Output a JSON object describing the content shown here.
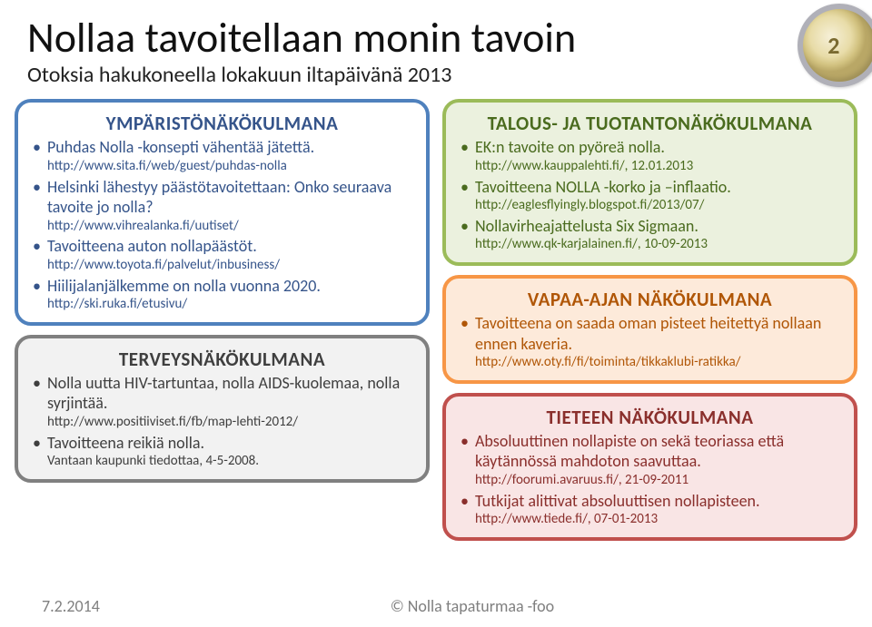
{
  "header": {
    "title": "Nollaa tavoitellaan monin tavoin",
    "subtitle": "Otoksia hakukoneella lokakuun iltapäivänä 2013"
  },
  "boxes": {
    "env": {
      "title": "YMPÄRISTÖNÄKÖKULMANA",
      "items": [
        {
          "text": "Puhdas Nolla -konsepti vähentää jätettä.",
          "sub": "http://www.sita.fi/web/guest/puhdas-nolla"
        },
        {
          "text": "Helsinki lähestyy päästötavoitettaan: Onko seuraava tavoite jo nolla?",
          "sub": "http://www.vihrealanka.fi/uutiset/"
        },
        {
          "text": "Tavoitteena auton nollapäästöt.",
          "sub": "http://www.toyota.fi/palvelut/inbusiness/"
        },
        {
          "text": "Hiilijalanjälkemme on nolla vuonna 2020.",
          "sub": "http://ski.ruka.fi/etusivu/"
        }
      ]
    },
    "health": {
      "title": "TERVEYSNÄKÖKULMANA",
      "items": [
        {
          "text": "Nolla uutta HIV-tartuntaa, nolla AIDS-kuolemaa, nolla syrjintää.",
          "sub": "http://www.positiiviset.fi/fb/map-lehti-2012/"
        },
        {
          "text": "Tavoitteena reikiä nolla.",
          "sub": "Vantaan kaupunki tiedottaa, 4-5-2008."
        }
      ]
    },
    "econ": {
      "title": "TALOUS- JA TUOTANTONÄKÖKULMANA",
      "items": [
        {
          "text": "EK:n tavoite on pyöreä nolla.",
          "sub": "http://www.kauppalehti.fi/, 12.01.2013"
        },
        {
          "text": "Tavoitteena NOLLA -korko ja –inflaatio.",
          "sub": "http://eaglesflyingly.blogspot.fi/2013/07/"
        },
        {
          "text": "Nollavirheajattelusta Six Sigmaan.",
          "sub": "http://www.qk-karjalainen.fi/, 10-09-2013"
        }
      ]
    },
    "leisure": {
      "title": "VAPAA-AJAN NÄKÖKULMANA",
      "items": [
        {
          "text": "Tavoitteena on saada oman pisteet heitettyä nollaan ennen kaveria.",
          "sub": "http://www.oty.fi/fi/toiminta/tikkaklubi-ratikka/"
        }
      ]
    },
    "science": {
      "title": "TIETEEN NÄKÖKULMANA",
      "items": [
        {
          "text": "Absoluuttinen nollapiste on sekä teoriassa että käytännössä mahdoton saavuttaa.",
          "sub": "http://foorumi.avaruus.fi/, 21-09-2011"
        },
        {
          "text": "Tutkijat alittivat absoluuttisen nollapisteen.",
          "sub": "http://www.tiede.fi/, 07-01-2013"
        }
      ]
    }
  },
  "footer": {
    "date": "7.2.2014",
    "copyright": "© Nolla tapaturmaa -foo"
  },
  "style": {
    "title_fontsize": 46,
    "subtitle_fontsize": 24,
    "body_fontsize": 18,
    "sub_fontsize": 15,
    "background": "#ffffff",
    "footer_color": "#7f7f7f",
    "boxes": {
      "env": {
        "border": "#4f81bd",
        "bg": "#ffffff",
        "text": "#35548a"
      },
      "health": {
        "border": "#808080",
        "bg": "#f2f2f2",
        "text": "#3f3f3f"
      },
      "econ": {
        "border": "#9bbb59",
        "bg": "#ebf1de",
        "text": "#4a6b1e"
      },
      "leisure": {
        "border": "#f79646",
        "bg": "#fdeada",
        "text": "#b05606"
      },
      "science": {
        "border": "#c0504d",
        "bg": "#f9e5e5",
        "text": "#8a2f2c"
      }
    }
  }
}
